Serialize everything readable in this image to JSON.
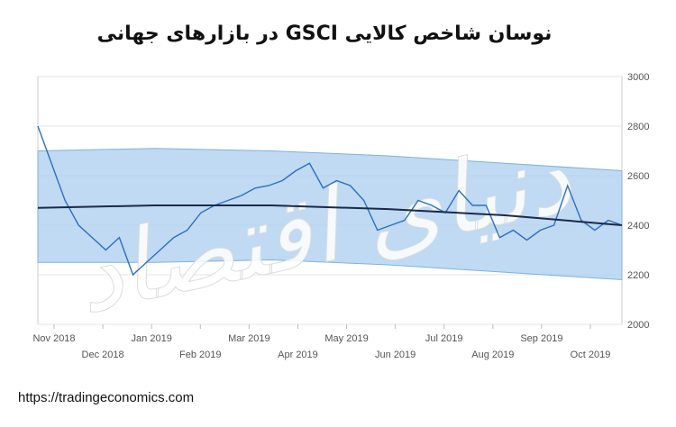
{
  "chart_data": {
    "type": "line",
    "title": "نوسان شاخص کالایی GSCI  در بازارهای جهانی",
    "watermark": "دنیای اقتصاد",
    "source": "https://tradingeconomics.com",
    "x_labels": [
      "Nov 2018",
      "Dec 2018",
      "Jan 2019",
      "Feb 2019",
      "Mar 2019",
      "Apr 2019",
      "May 2019",
      "Jun 2019",
      "Jul 2019",
      "Aug 2019",
      "Sep 2019",
      "Oct 2019"
    ],
    "series": [
      {
        "color": "#2e6fc0",
        "values": [
          2800,
          2650,
          2500,
          2400,
          2350,
          2300,
          2350,
          2200,
          2250,
          2300,
          2350,
          2380,
          2450,
          2480,
          2500,
          2520,
          2550,
          2560,
          2580,
          2620,
          2650,
          2550,
          2580,
          2560,
          2500,
          2380,
          2400,
          2420,
          2500,
          2480,
          2450,
          2540,
          2480,
          2480,
          2350,
          2380,
          2340,
          2380,
          2400,
          2560,
          2420,
          2380,
          2420,
          2400
        ]
      }
    ],
    "trend": {
      "color": "#1a2a4a",
      "values": [
        2470,
        2480,
        2480,
        2465,
        2440,
        2400
      ]
    },
    "band": {
      "color": "#a9cdee",
      "upper": [
        2700,
        2710,
        2700,
        2680,
        2650,
        2620
      ],
      "lower": [
        2250,
        2250,
        2260,
        2240,
        2210,
        2180
      ]
    },
    "ylim": [
      2000,
      3000
    ],
    "yticks": [
      2000,
      2200,
      2400,
      2600,
      2800,
      3000
    ],
    "grid": true
  }
}
